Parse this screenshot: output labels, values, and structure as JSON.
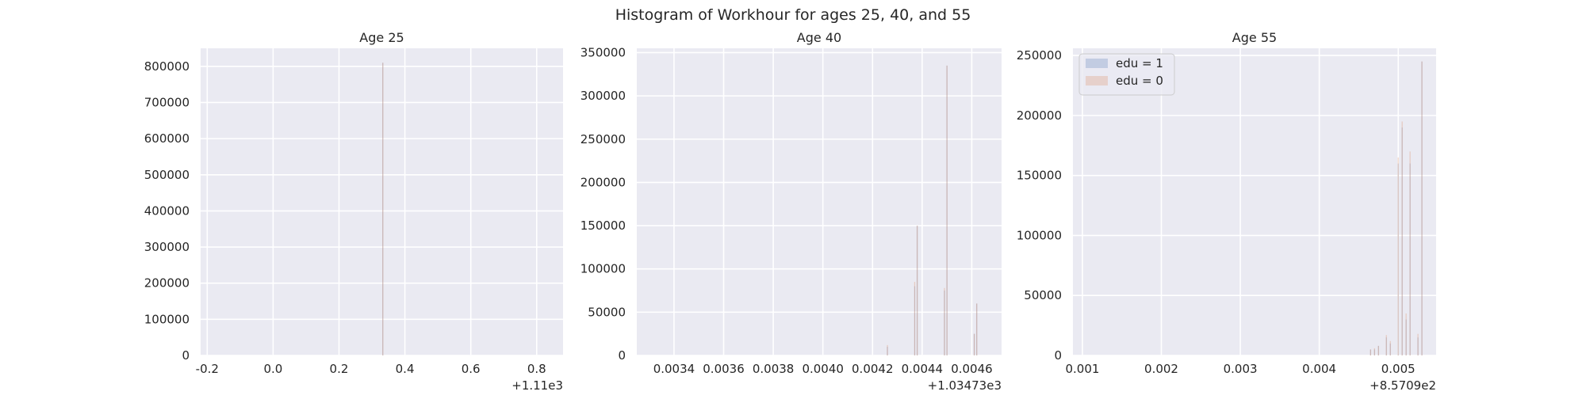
{
  "figure": {
    "suptitle": "Histogram of Workhour for ages 25, 40, and 55"
  },
  "colors": {
    "plot_background": "#eaeaf2",
    "grid": "#ffffff",
    "edu1": "#4c72b0",
    "edu0": "#dd8452",
    "text": "#262626"
  },
  "chart_data": [
    {
      "type": "bar",
      "title": "Age 25",
      "xlabel": "",
      "ylabel": "",
      "x_ticks": [
        "-0.2",
        "0.0",
        "0.2",
        "0.4",
        "0.6",
        "0.8"
      ],
      "x_offset_label": "+1.11e3",
      "xlim": [
        -0.22,
        0.88
      ],
      "y_ticks": [
        "0",
        "100000",
        "200000",
        "300000",
        "400000",
        "500000",
        "600000",
        "700000",
        "800000"
      ],
      "ylim": [
        0,
        850000
      ],
      "grid": true,
      "series": [
        {
          "name": "edu = 1",
          "x": [
            0.333
          ],
          "values": [
            810000
          ]
        },
        {
          "name": "edu = 0",
          "x": [
            0.333
          ],
          "values": [
            810000
          ]
        }
      ]
    },
    {
      "type": "bar",
      "title": "Age 40",
      "xlabel": "",
      "ylabel": "",
      "x_ticks": [
        "0.0034",
        "0.0036",
        "0.0038",
        "0.0040",
        "0.0042",
        "0.0044",
        "0.0046"
      ],
      "x_offset_label": "+1.03473e3",
      "xlim": [
        0.00325,
        0.00472
      ],
      "y_ticks": [
        "0",
        "50000",
        "100000",
        "150000",
        "200000",
        "250000",
        "300000",
        "350000"
      ],
      "ylim": [
        0,
        355000
      ],
      "grid": true,
      "series": [
        {
          "name": "edu = 1",
          "x": [
            0.00426,
            0.00437,
            0.00438,
            0.00449,
            0.0045,
            0.00461,
            0.00462
          ],
          "values": [
            10000,
            80000,
            150000,
            75000,
            335000,
            25000,
            60000
          ]
        },
        {
          "name": "edu = 0",
          "x": [
            0.00426,
            0.00437,
            0.00438,
            0.00449,
            0.0045,
            0.00461,
            0.00462
          ],
          "values": [
            12000,
            85000,
            150000,
            78000,
            335000,
            25000,
            60000
          ]
        }
      ]
    },
    {
      "type": "bar",
      "title": "Age 55",
      "xlabel": "",
      "ylabel": "",
      "x_ticks": [
        "0.001",
        "0.002",
        "0.003",
        "0.004",
        "0.005"
      ],
      "x_offset_label": "+8.5709e2",
      "xlim": [
        0.00088,
        0.00548
      ],
      "y_ticks": [
        "0",
        "50000",
        "100000",
        "150000",
        "200000",
        "250000"
      ],
      "ylim": [
        0,
        256000
      ],
      "grid": true,
      "legend": {
        "position": "upper-left",
        "entries": [
          "edu = 1",
          "edu = 0"
        ]
      },
      "series": [
        {
          "name": "edu = 1",
          "x": [
            0.00465,
            0.0047,
            0.00475,
            0.00485,
            0.0049,
            0.005,
            0.00505,
            0.0051,
            0.00515,
            0.00525,
            0.0053
          ],
          "values": [
            5000,
            5000,
            8000,
            15000,
            10000,
            160000,
            190000,
            30000,
            160000,
            15000,
            245000
          ]
        },
        {
          "name": "edu = 0",
          "x": [
            0.00465,
            0.0047,
            0.00475,
            0.00485,
            0.0049,
            0.005,
            0.00505,
            0.0051,
            0.00515,
            0.00525,
            0.0053
          ],
          "values": [
            5000,
            6000,
            8000,
            17000,
            12000,
            165000,
            195000,
            35000,
            170000,
            18000,
            245000
          ]
        }
      ]
    }
  ]
}
